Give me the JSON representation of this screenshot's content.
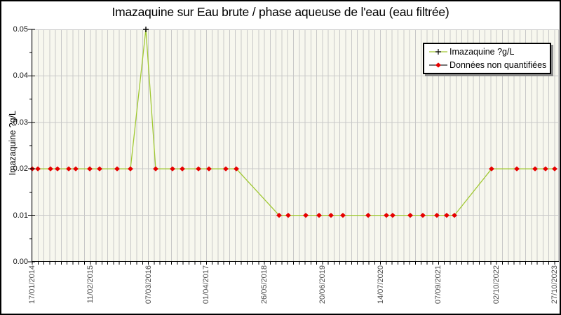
{
  "title": "Imazaquine sur Eau brute / phase aqueuse de l'eau (eau filtrée)",
  "colors": {
    "plot_bg": "#f7f7ee",
    "grid": "#c8c8c8",
    "axis": "#000000",
    "line": "#a0c832",
    "diamond": "#e60000",
    "cross": "#000000",
    "x_label": "#4d4d4d",
    "legend_line2": "#222222"
  },
  "legend": {
    "items": [
      {
        "label": "Imazaquine ?g/L",
        "marker": "plus-on-line",
        "line_color": "#a0c832",
        "marker_color": "#000000"
      },
      {
        "label": "Données non quantifiées",
        "marker": "diamond-on-line",
        "line_color": "#222222",
        "marker_color": "#e60000"
      }
    ]
  },
  "chart_data": {
    "type": "line",
    "title": "Imazaquine sur Eau brute / phase aqueuse de l'eau (eau filtrée)",
    "ylabel": "Imazaquine ?g/L",
    "ylim": [
      0,
      0.05
    ],
    "y_tick_labels": [
      "0.00",
      "0.01",
      "0.02",
      "0.03",
      "0.04",
      "0.05"
    ],
    "x_tick_labels": [
      "17/01/2014",
      "11/02/2015",
      "07/03/2016",
      "01/04/2017",
      "26/05/2018",
      "20/06/2019",
      "14/07/2020",
      "07/09/2021",
      "02/10/2022",
      "27/10/2023"
    ],
    "grid": {
      "n_vertical_gridlines": 91,
      "x_label_every": 10,
      "horizontal_gridlines_at": [
        0.01,
        0.02,
        0.03,
        0.04
      ]
    },
    "series_name": "Imazaquine ?g/L",
    "points_format": "[x_fraction_of_time_axis_from_17/01/2014_to_27/10/2023, value_ugL, quantified_flag(1=quantified_black_cross,0=non_quantified_red_diamond)]",
    "points": [
      [
        0.0013,
        0.02,
        0
      ],
      [
        0.012,
        0.02,
        0
      ],
      [
        0.0359,
        0.02,
        0
      ],
      [
        0.0492,
        0.02,
        0
      ],
      [
        0.0705,
        0.02,
        0
      ],
      [
        0.0838,
        0.02,
        0
      ],
      [
        0.1104,
        0.02,
        0
      ],
      [
        0.129,
        0.02,
        0
      ],
      [
        0.1622,
        0.02,
        0
      ],
      [
        0.1875,
        0.02,
        0
      ],
      [
        0.2168,
        0.05,
        1
      ],
      [
        0.2354,
        0.02,
        0
      ],
      [
        0.2673,
        0.02,
        0
      ],
      [
        0.2859,
        0.02,
        0
      ],
      [
        0.3165,
        0.02,
        0
      ],
      [
        0.3364,
        0.02,
        0
      ],
      [
        0.3684,
        0.02,
        0
      ],
      [
        0.3883,
        0.02,
        0
      ],
      [
        0.4694,
        0.01,
        0
      ],
      [
        0.4867,
        0.01,
        0
      ],
      [
        0.52,
        0.01,
        0
      ],
      [
        0.5452,
        0.01,
        0
      ],
      [
        0.5678,
        0.01,
        0
      ],
      [
        0.5904,
        0.01,
        0
      ],
      [
        0.6383,
        0.01,
        0
      ],
      [
        0.6729,
        0.01,
        0
      ],
      [
        0.6848,
        0.01,
        0
      ],
      [
        0.7181,
        0.01,
        0
      ],
      [
        0.742,
        0.01,
        0
      ],
      [
        0.7686,
        0.01,
        0
      ],
      [
        0.7872,
        0.01,
        0
      ],
      [
        0.8019,
        0.01,
        0
      ],
      [
        0.8723,
        0.02,
        0
      ],
      [
        0.9202,
        0.02,
        0
      ],
      [
        0.9548,
        0.02,
        0
      ],
      [
        0.9747,
        0.02,
        0
      ],
      [
        0.992,
        0.02,
        0
      ]
    ]
  }
}
